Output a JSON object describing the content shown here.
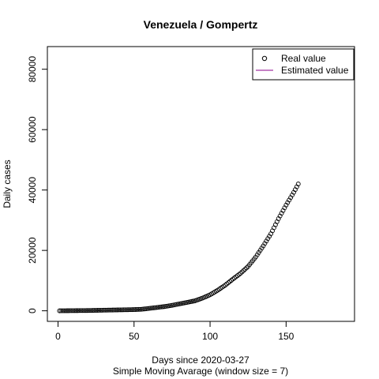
{
  "chart_data": {
    "type": "scatter",
    "title": "Venezuela / Gompertz",
    "xlabel": "Days since 2020-03-27",
    "subtitle": "Simple Moving Avarage (window size = 7)",
    "ylabel": "Daily cases",
    "xlim": [
      -7,
      195
    ],
    "ylim": [
      -3500,
      87500
    ],
    "x_ticks": [
      0,
      50,
      100,
      150
    ],
    "x_tick_labels": [
      "0",
      "50",
      "100",
      "150"
    ],
    "y_ticks": [
      0,
      20000,
      40000,
      60000,
      80000
    ],
    "y_tick_labels": [
      "0",
      "20000",
      "40000",
      "60000",
      "80000"
    ],
    "legend": {
      "position": "top-right",
      "entries": [
        {
          "label": "Real value",
          "symbol": "open-circle",
          "color": "#000000"
        },
        {
          "label": "Estimated value",
          "symbol": "line",
          "color": "#8b008b"
        }
      ]
    },
    "series": [
      {
        "name": "Real value",
        "marker": "open-circle",
        "color": "#000000",
        "points": [
          [
            1,
            0
          ],
          [
            10,
            50
          ],
          [
            20,
            100
          ],
          [
            30,
            200
          ],
          [
            40,
            300
          ],
          [
            50,
            400
          ],
          [
            55,
            500
          ],
          [
            60,
            800
          ],
          [
            65,
            1100
          ],
          [
            70,
            1400
          ],
          [
            75,
            1800
          ],
          [
            80,
            2300
          ],
          [
            85,
            2800
          ],
          [
            90,
            3300
          ],
          [
            95,
            4200
          ],
          [
            100,
            5300
          ],
          [
            105,
            6800
          ],
          [
            110,
            8500
          ],
          [
            115,
            10500
          ],
          [
            120,
            12400
          ],
          [
            125,
            14700
          ],
          [
            130,
            17800
          ],
          [
            135,
            21500
          ],
          [
            140,
            25500
          ],
          [
            145,
            30500
          ],
          [
            150,
            35000
          ],
          [
            153,
            37500
          ],
          [
            155,
            39200
          ],
          [
            158,
            42000
          ]
        ]
      }
    ]
  }
}
